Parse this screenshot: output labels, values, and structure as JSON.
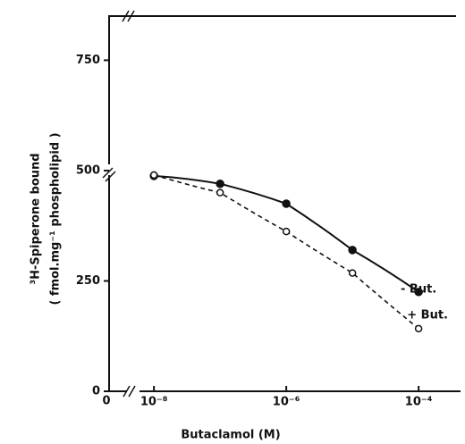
{
  "chart_data": {
    "type": "scatter-line",
    "y_label": "³H-Spiperone bound",
    "y_label_2": "( fmol.mg⁻¹ phospholipid )",
    "x_label": "Butaclamol  (M)",
    "x_origin_label": "0",
    "x": [
      1e-08,
      1e-07,
      1e-06,
      1e-05,
      0.0001
    ],
    "series": [
      {
        "name": "+ But.",
        "color": "#111111",
        "marker": "filled",
        "line": "solid",
        "values": [
          488,
          470,
          425,
          320,
          225
        ]
      },
      {
        "name": "- But.",
        "color": "#111111",
        "marker": "open",
        "line": "dashed",
        "values": [
          490,
          450,
          362,
          268,
          142
        ]
      }
    ],
    "xscale": "log",
    "xlim": [
      2.1e-09,
      0.00043
    ],
    "xticks": [
      {
        "value": 1e-08,
        "label": "10⁻⁸"
      },
      {
        "value": 1e-06,
        "label": "10⁻⁶"
      },
      {
        "value": 0.0001,
        "label": "10⁻⁴"
      }
    ],
    "ylim": [
      0,
      850
    ],
    "yticks": [
      0,
      250,
      500,
      750
    ]
  }
}
